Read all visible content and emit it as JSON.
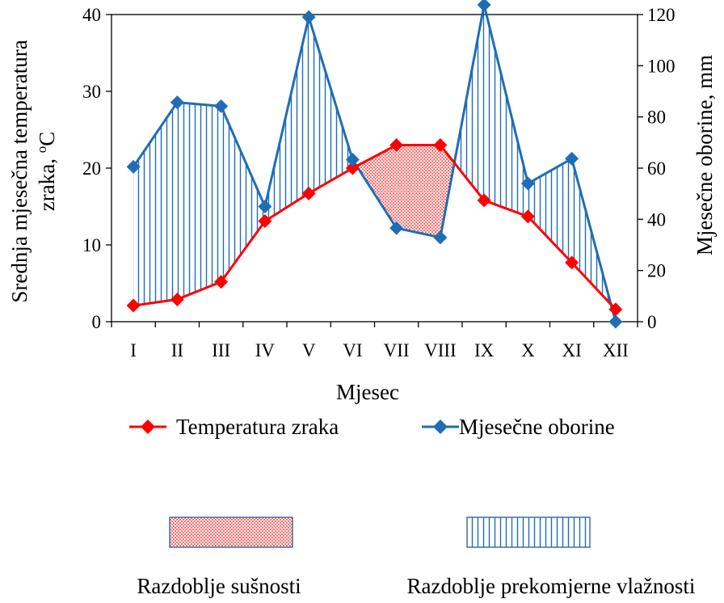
{
  "chart_data": {
    "type": "line",
    "title": "",
    "xlabel": "Mjesec",
    "ylabel_left": "Srednja mjesečna temperatura zraka, °C",
    "ylabel_left_line1": "Srednja mjesečna temperatura",
    "ylabel_left_line2_prefix": "zraka, ",
    "ylabel_left_superscript": "o",
    "ylabel_left_unit": "C",
    "ylabel_right": "Mjesečne oborine, mm",
    "categories": [
      "I",
      "II",
      "III",
      "IV",
      "V",
      "VI",
      "VII",
      "VIII",
      "IX",
      "X",
      "XI",
      "XII"
    ],
    "ylim_left": [
      0,
      40
    ],
    "ylim_right": [
      0,
      120
    ],
    "yticks_left": [
      0,
      10,
      20,
      30,
      40
    ],
    "yticks_right": [
      0,
      20,
      40,
      60,
      80,
      100,
      120
    ],
    "grid": false,
    "legend_position": "bottom",
    "series": [
      {
        "name": "Temperatura zraka",
        "axis": "left",
        "color": "#ff0000",
        "values": [
          2.1,
          2.9,
          5.2,
          13.1,
          16.7,
          20.0,
          23.0,
          23.0,
          15.8,
          13.7,
          7.7,
          1.6
        ]
      },
      {
        "name": "Mjesečne oborine",
        "axis": "right",
        "color": "#1f6db5",
        "values": [
          60.5,
          85.7,
          84.2,
          45.0,
          119.0,
          63.3,
          36.6,
          32.9,
          123.8,
          54.0,
          63.7,
          0.0
        ]
      }
    ],
    "area_legend": [
      {
        "name": "Razdoblje sušnosti",
        "pattern": "dots",
        "color": "#ff0000"
      },
      {
        "name": "Razdoblje prekomjerne vlažnosti",
        "pattern": "vertical-lines",
        "color": "#1f6db5"
      }
    ]
  }
}
